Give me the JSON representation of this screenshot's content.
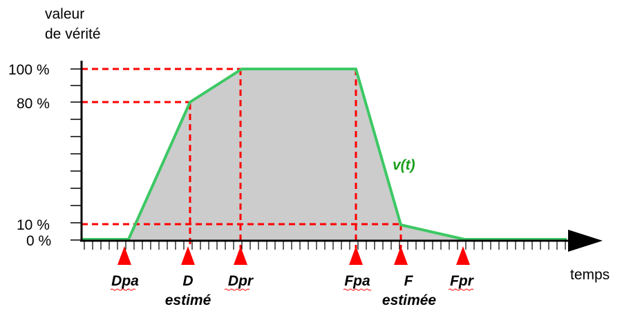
{
  "y_axis": {
    "title_line1": "valeur",
    "title_line2": "de vérité"
  },
  "x_axis": {
    "title": "temps"
  },
  "y_ticks": [
    "100 %",
    "80 %",
    "10 %",
    "0 %"
  ],
  "curve": {
    "label": "v(t)"
  },
  "markers": [
    {
      "id": "dpa",
      "label": "Dpa",
      "sub": ""
    },
    {
      "id": "d",
      "label": "D",
      "sub": "estimé"
    },
    {
      "id": "dpr",
      "label": "Dpr",
      "sub": ""
    },
    {
      "id": "fpa",
      "label": "Fpa",
      "sub": ""
    },
    {
      "id": "f",
      "label": "F",
      "sub": "estimée"
    },
    {
      "id": "fpr",
      "label": "Fpr",
      "sub": ""
    }
  ],
  "colors": {
    "curve": "#3cc864",
    "fill": "#cccccc",
    "guides": "#ff0000",
    "markers": "#ff0000",
    "axis": "#000000",
    "curve_label": "#1a9e1a"
  }
}
